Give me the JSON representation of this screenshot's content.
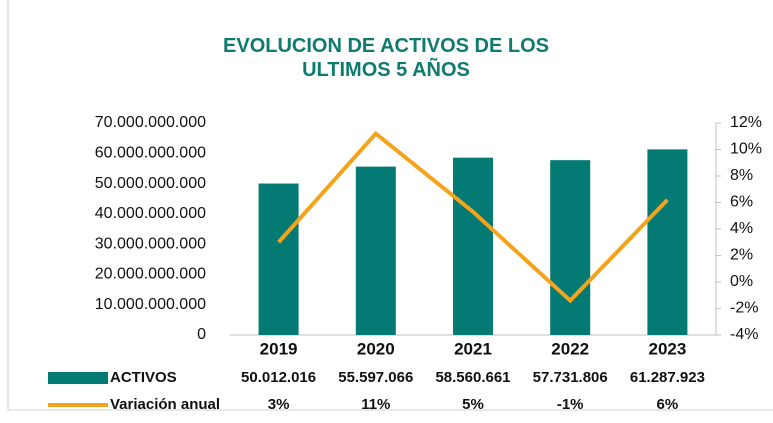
{
  "chart_data": {
    "type": "bar+line",
    "title": "EVOLUCION DE ACTIVOS DE LOS ULTIMOS 5 AÑOS",
    "categories": [
      "2019",
      "2020",
      "2021",
      "2022",
      "2023"
    ],
    "series": [
      {
        "name": "ACTIVOS",
        "type": "bar",
        "color": "#037a73",
        "axis": "y",
        "values": [
          50012016000,
          55597066000,
          58560661000,
          57731806000,
          61287923000
        ],
        "value_labels": [
          "50.012.016",
          "55.597.066",
          "58.560.661",
          "57.731.806",
          "61.287.923"
        ]
      },
      {
        "name": "Variación anual",
        "type": "line",
        "color": "#f5a31a",
        "axis": "y2",
        "values": [
          3,
          11.2,
          5.3,
          -1.4,
          6.2
        ],
        "value_labels": [
          "3%",
          "11%",
          "5%",
          "-1%",
          "6%"
        ]
      }
    ],
    "ylim": [
      0,
      70000000000
    ],
    "yticks": [
      0,
      {
        "value": 10000000000,
        "label": "10.000.000.000"
      },
      {
        "value": 20000000000,
        "label": "20.000.000.000"
      },
      {
        "value": 30000000000,
        "label": "30.000.000.000"
      },
      {
        "value": 40000000000,
        "label": "40.000.000.000"
      },
      {
        "value": 50000000000,
        "label": "50.000.000.000"
      },
      {
        "value": 60000000000,
        "label": "60.000.000.000"
      },
      {
        "value": 70000000000,
        "label": "70.000.000.000"
      }
    ],
    "y2lim": [
      -4,
      12
    ],
    "y2ticks": [
      {
        "value": -4,
        "label": "-4%"
      },
      {
        "value": -2,
        "label": "-2%"
      },
      {
        "value": 0,
        "label": "0%"
      },
      {
        "value": 2,
        "label": "2%"
      },
      {
        "value": 4,
        "label": "4%"
      },
      {
        "value": 6,
        "label": "6%"
      },
      {
        "value": 8,
        "label": "8%"
      },
      {
        "value": 10,
        "label": "10%"
      },
      {
        "value": 12,
        "label": "12%"
      }
    ],
    "grid": false
  }
}
